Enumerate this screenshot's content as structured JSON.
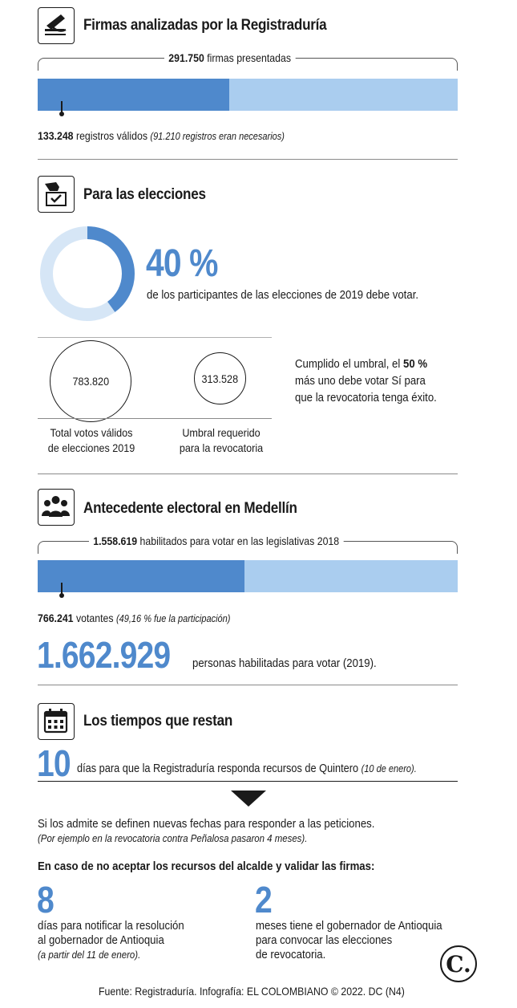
{
  "sections": {
    "firmas": {
      "title": "Firmas analizadas por la Registraduría",
      "presented_number": "291.750",
      "presented_text": "firmas presentadas",
      "valid_number": "133.248",
      "valid_text": "registros válidos",
      "valid_note": "(91.210 registros eran necesarios)",
      "bar_fraction": 0.457
    },
    "elecciones": {
      "title": "Para las elecciones",
      "percent": "40 %",
      "percent_fraction": 0.4,
      "percent_text": "de los participantes de las elecciones de 2019 debe votar.",
      "circle_total_value": "783.820",
      "circle_threshold_value": "313.528",
      "label_total_line1": "Total votos válidos",
      "label_total_line2": "de elecciones 2019",
      "label_threshold_line1": "Umbral requerido",
      "label_threshold_line2": "para la revocatoria",
      "note_line1_pre": "Cumplido el umbral, el",
      "note_line1_bold": "50 %",
      "note_line2": "más uno debe votar Sí para",
      "note_line3": "que la revocatoria tenga éxito."
    },
    "antecedente": {
      "title": "Antecedente electoral en Medellín",
      "enabled_number": "1.558.619",
      "enabled_text": "habilitados para votar en las legislativas 2018",
      "voters_number": "766.241",
      "voters_text": "votantes",
      "voters_note": "(49,16 % fue la participación)",
      "bar_fraction": 0.4916,
      "big_number": "1.662.929",
      "big_text": "personas habilitadas para votar (2019)."
    },
    "tiempos": {
      "title": "Los tiempos que restan",
      "days_number": "10",
      "days_text": "días para que la Registraduría responda recursos de Quintero",
      "days_note": "(10 de enero).",
      "admit_text": "Si los admite se definen nuevas fechas para responder a las peticiones.",
      "admit_note": "(Por ejemplo en la revocatoria contra Peñalosa pasaron 4 meses).",
      "case_title": "En caso de no aceptar los recursos del alcalde y validar las firmas:",
      "col1_number": "8",
      "col1_line1": "días para notificar la resolución",
      "col1_line2": "al gobernador de Antioquia",
      "col1_note": "(a partir del 11 de enero).",
      "col2_number": "2",
      "col2_line1": "meses tiene el gobernador de Antioquia",
      "col2_line2": "para convocar las elecciones",
      "col2_line3": "de revocatoria."
    }
  },
  "logo_letter": "C.",
  "footer": "Fuente: Registraduría. Infografía: EL COLOMBIANO © 2022. DC (N4)",
  "colors": {
    "accent": "#4f89cc",
    "accent_light": "#aacdef",
    "text": "#1a1a1a",
    "rule": "#8a8a8a"
  },
  "icons": [
    "hand-writing-icon",
    "ballot-box-icon",
    "people-group-icon",
    "calendar-icon",
    "down-arrow-icon"
  ]
}
